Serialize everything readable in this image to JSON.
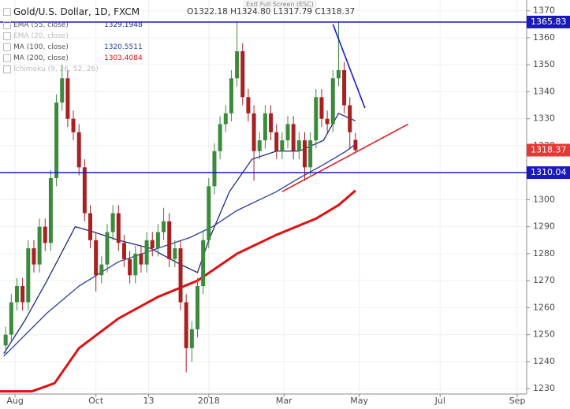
{
  "top_bar": {
    "exit_label": "Exit Full Screen (ESC)"
  },
  "chart_data": {
    "type": "candlestick",
    "title": "Gold/U.S. Dollar, 1D, FXCM",
    "ohlc_labels": [
      "O1322.18",
      "H1324.80",
      "L1317.79",
      "C1318.37"
    ],
    "up_color": "#3c8a3c",
    "down_color": "#a82020",
    "x": [
      3,
      6,
      9,
      12,
      15,
      18,
      21,
      24,
      27,
      30,
      33,
      36,
      39,
      42,
      45,
      48,
      51,
      54,
      57,
      60,
      63,
      66,
      69,
      72,
      75,
      78,
      81,
      84,
      87,
      90,
      93,
      96,
      99,
      102,
      105,
      108,
      111,
      114,
      117,
      120,
      123,
      126,
      129,
      132,
      135,
      138,
      141,
      144,
      147,
      150,
      153,
      156,
      159,
      162,
      165,
      168,
      171,
      174,
      177,
      180,
      183,
      186,
      189
    ],
    "open": [
      1246,
      1250,
      1262,
      1268,
      1262,
      1282,
      1276,
      1290,
      1284,
      1308,
      1336,
      1345,
      1330,
      1325,
      1312,
      1295,
      1285,
      1272,
      1276,
      1288,
      1295,
      1284,
      1278,
      1272,
      1280,
      1276,
      1285,
      1282,
      1288,
      1292,
      1278,
      1282,
      1262,
      1245,
      1252,
      1268,
      1285,
      1305,
      1318,
      1328,
      1332,
      1345,
      1355,
      1338,
      1332,
      1318,
      1322,
      1332,
      1325,
      1318,
      1322,
      1328,
      1318,
      1322,
      1312,
      1322,
      1338,
      1330,
      1328,
      1345,
      1348,
      1335,
      1322.18
    ],
    "high": [
      1253,
      1265,
      1271,
      1271,
      1285,
      1285,
      1293,
      1293,
      1311,
      1339,
      1350,
      1348,
      1333,
      1328,
      1315,
      1298,
      1288,
      1279,
      1291,
      1298,
      1298,
      1287,
      1281,
      1283,
      1283,
      1288,
      1288,
      1291,
      1297,
      1295,
      1285,
      1285,
      1265,
      1255,
      1271,
      1288,
      1308,
      1321,
      1331,
      1335,
      1348,
      1366,
      1358,
      1341,
      1335,
      1325,
      1335,
      1335,
      1328,
      1325,
      1331,
      1331,
      1325,
      1325,
      1325,
      1341,
      1341,
      1333,
      1348,
      1366,
      1351,
      1338,
      1324.8
    ],
    "low": [
      1243,
      1247,
      1259,
      1259,
      1259,
      1273,
      1273,
      1281,
      1281,
      1305,
      1333,
      1327,
      1322,
      1309,
      1292,
      1282,
      1266,
      1269,
      1273,
      1285,
      1281,
      1275,
      1269,
      1269,
      1273,
      1273,
      1279,
      1279,
      1285,
      1275,
      1275,
      1259,
      1236,
      1240,
      1249,
      1265,
      1282,
      1302,
      1315,
      1325,
      1329,
      1342,
      1335,
      1329,
      1307,
      1315,
      1319,
      1322,
      1315,
      1315,
      1319,
      1315,
      1315,
      1307,
      1309,
      1319,
      1327,
      1325,
      1325,
      1342,
      1332,
      1319,
      1317.79
    ],
    "close": [
      1250,
      1262,
      1268,
      1262,
      1282,
      1276,
      1290,
      1284,
      1308,
      1336,
      1345,
      1330,
      1325,
      1312,
      1295,
      1285,
      1272,
      1276,
      1288,
      1295,
      1284,
      1278,
      1272,
      1280,
      1276,
      1285,
      1282,
      1288,
      1292,
      1278,
      1282,
      1262,
      1245,
      1252,
      1268,
      1285,
      1305,
      1318,
      1328,
      1332,
      1345,
      1355,
      1338,
      1332,
      1318,
      1322,
      1332,
      1325,
      1318,
      1322,
      1328,
      1318,
      1322,
      1312,
      1322,
      1338,
      1330,
      1328,
      1345,
      1348,
      1335,
      1325,
      1318.37
    ],
    "last_price_color": "#e53935",
    "indicators": [
      {
        "name": "EMA (55, close)",
        "value_label": "1329.1948",
        "color": "#1f2a80",
        "x": [
          2,
          13,
          25,
          40,
          50,
          63,
          80,
          96,
          105,
          111,
          122,
          134,
          147,
          159,
          172,
          180,
          189
        ],
        "values": [
          1243,
          1255,
          1270,
          1290,
          1288,
          1285,
          1282,
          1276,
          1273,
          1285,
          1303,
          1315,
          1318,
          1318,
          1322,
          1332,
          1329.19
        ]
      },
      {
        "name": "EMA (20, close)",
        "hidden": true
      },
      {
        "name": "MA (100, close)",
        "value_label": "1320.5511",
        "color": "#2b3d9c",
        "x": [
          2,
          25,
          42,
          63,
          84,
          101,
          113,
          126,
          138,
          147,
          159,
          172,
          184,
          189
        ],
        "values": [
          1242,
          1258,
          1268,
          1277,
          1282,
          1286,
          1290,
          1296,
          1300,
          1303,
          1308,
          1313,
          1318,
          1320.55
        ]
      },
      {
        "name": "MA (200, close)",
        "value_label": "1303.4084",
        "color": "#e01010",
        "x": [
          0,
          17,
          29,
          42,
          63,
          84,
          105,
          126,
          147,
          168,
          180,
          189
        ],
        "values": [
          1229,
          1229,
          1232,
          1245,
          1256,
          1264,
          1270,
          1280,
          1287,
          1293,
          1298,
          1303.41
        ]
      },
      {
        "name": "Ichimoku (9, 26, 52, 26)",
        "hidden": true
      }
    ],
    "trendlines": [
      {
        "color": "#1a1ad8",
        "x": [
          177,
          194
        ],
        "values": [
          1365,
          1334
        ]
      },
      {
        "color": "#e02020",
        "x": [
          150,
          217
        ],
        "values": [
          1303,
          1328
        ]
      }
    ],
    "hlines": [
      {
        "value": 1365.83,
        "color": "#1a1ab8"
      },
      {
        "value": 1310.04,
        "color": "#1a1ab8"
      }
    ],
    "xlim": [
      0,
      280
    ],
    "xticks": [
      {
        "value": 8,
        "label": "Aug"
      },
      {
        "value": 51,
        "label": "Oct"
      },
      {
        "value": 79,
        "label": "13"
      },
      {
        "value": 111,
        "label": "2018"
      },
      {
        "value": 151,
        "label": "Mar"
      },
      {
        "value": 191,
        "label": "May"
      },
      {
        "value": 234,
        "label": "Jul"
      },
      {
        "value": 275,
        "label": "Sep"
      }
    ],
    "ylim": [
      1228,
      1374
    ],
    "yticks": [
      1230,
      1240,
      1250,
      1260,
      1270,
      1280,
      1290,
      1300,
      1310,
      1320,
      1330,
      1340,
      1350,
      1360,
      1370
    ],
    "grid": true
  }
}
